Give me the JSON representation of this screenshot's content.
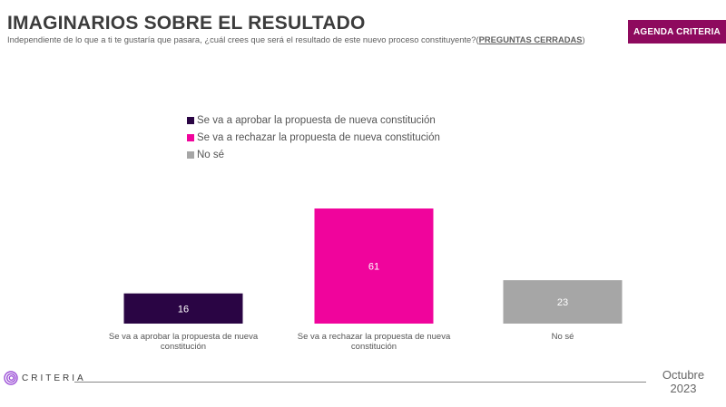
{
  "header": {
    "title": "IMAGINARIOS SOBRE EL RESULTADO",
    "subtitle": "Independiente de lo que a ti te gustaría que pasara, ¿cuál crees que será el resultado de este nuevo proceso constituyente?(",
    "subtitle_link": "PREGUNTAS CERRADAS",
    "subtitle_end": ")",
    "badge": "AGENDA CRITERIA"
  },
  "chart_data": {
    "type": "bar",
    "title": "IMAGINARIOS SOBRE EL RESULTADO",
    "xlabel": "",
    "ylabel": "",
    "ylim": [
      0,
      61
    ],
    "grid": false,
    "legend_position": "top-center",
    "categories": [
      "Se va a aprobar la propuesta de nueva constitución",
      "Se va a rechazar la propuesta de nueva constitución",
      "No sé"
    ],
    "category_lines": [
      [
        "Se va a aprobar la propuesta de nueva",
        "constitución"
      ],
      [
        "Se va a rechazar la propuesta de nueva",
        "constitución"
      ],
      [
        "No sé"
      ]
    ],
    "values": [
      16,
      61,
      23
    ],
    "value_labels": [
      "16",
      "61",
      "23"
    ],
    "colors": [
      "#2a0544",
      "#f0049c",
      "#a6a6a6"
    ],
    "label_colors": [
      "#ffffff",
      "#ffffff",
      "#ffffff"
    ],
    "legend": [
      {
        "label": "Se va a aprobar la propuesta de nueva constitución",
        "color": "#2a0544"
      },
      {
        "label": "Se va a rechazar la propuesta de nueva constitución",
        "color": "#f0049c"
      },
      {
        "label": "No sé",
        "color": "#a6a6a6"
      }
    ]
  },
  "footer": {
    "logo_text": "CRITERIA",
    "date_month": "Octubre",
    "date_year": "2023",
    "logo_color": "#9b4fd6"
  }
}
